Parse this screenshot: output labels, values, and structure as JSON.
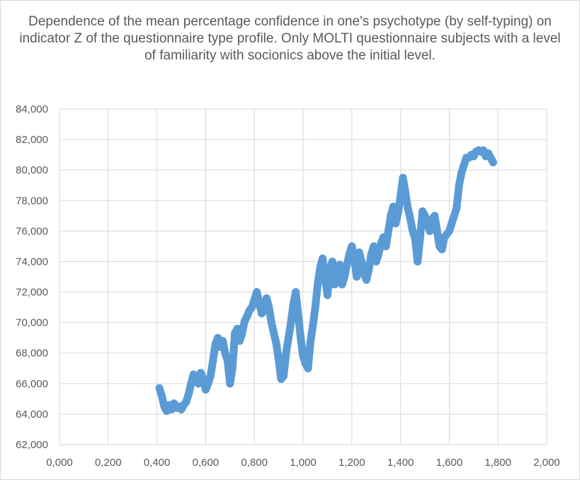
{
  "chart_data": {
    "type": "scatter",
    "title": "Dependence of the mean percentage confidence in one's psychotype (by self-typing) on indicator Z of the questionnaire type profile. Only MOLTI questionnaire subjects with a level of familiarity with socionics above the initial level.",
    "xlabel": "",
    "ylabel": "",
    "xlim": [
      0,
      2
    ],
    "ylim": [
      62000,
      84000
    ],
    "x_ticks": [
      "0,000",
      "0,200",
      "0,400",
      "0,600",
      "0,800",
      "1,000",
      "1,200",
      "1,400",
      "1,600",
      "1,800",
      "2,000"
    ],
    "y_ticks": [
      "62,000",
      "64,000",
      "66,000",
      "68,000",
      "70,000",
      "72,000",
      "74,000",
      "76,000",
      "78,000",
      "80,000",
      "82,000",
      "84,000"
    ],
    "grid": true,
    "legend": "none",
    "marker_color": "#5b9bd5",
    "series": [
      {
        "points": [
          [
            0.41,
            65.7
          ],
          [
            0.42,
            65.2
          ],
          [
            0.43,
            64.5
          ],
          [
            0.44,
            64.2
          ],
          [
            0.45,
            64.6
          ],
          [
            0.46,
            64.3
          ],
          [
            0.47,
            64.7
          ],
          [
            0.48,
            64.4
          ],
          [
            0.49,
            64.5
          ],
          [
            0.5,
            64.3
          ],
          [
            0.51,
            64.6
          ],
          [
            0.52,
            64.8
          ],
          [
            0.53,
            65.3
          ],
          [
            0.54,
            66.0
          ],
          [
            0.55,
            66.6
          ],
          [
            0.56,
            66.4
          ],
          [
            0.57,
            66.0
          ],
          [
            0.58,
            66.7
          ],
          [
            0.59,
            66.3
          ],
          [
            0.6,
            65.6
          ],
          [
            0.61,
            66.0
          ],
          [
            0.62,
            66.5
          ],
          [
            0.63,
            67.5
          ],
          [
            0.64,
            68.6
          ],
          [
            0.65,
            69.0
          ],
          [
            0.66,
            68.4
          ],
          [
            0.67,
            68.8
          ],
          [
            0.68,
            68.0
          ],
          [
            0.69,
            67.5
          ],
          [
            0.7,
            66.0
          ],
          [
            0.71,
            67.0
          ],
          [
            0.72,
            69.3
          ],
          [
            0.73,
            69.6
          ],
          [
            0.74,
            68.8
          ],
          [
            0.75,
            69.3
          ],
          [
            0.76,
            70.1
          ],
          [
            0.77,
            70.4
          ],
          [
            0.78,
            70.8
          ],
          [
            0.79,
            71.0
          ],
          [
            0.8,
            71.5
          ],
          [
            0.81,
            72.0
          ],
          [
            0.82,
            71.3
          ],
          [
            0.83,
            70.6
          ],
          [
            0.84,
            70.8
          ],
          [
            0.85,
            71.6
          ],
          [
            0.86,
            71.0
          ],
          [
            0.87,
            70.0
          ],
          [
            0.88,
            69.3
          ],
          [
            0.89,
            68.6
          ],
          [
            0.9,
            67.5
          ],
          [
            0.91,
            66.3
          ],
          [
            0.92,
            66.5
          ],
          [
            0.93,
            68.0
          ],
          [
            0.94,
            69.0
          ],
          [
            0.95,
            70.0
          ],
          [
            0.96,
            71.2
          ],
          [
            0.97,
            72.0
          ],
          [
            0.98,
            70.5
          ],
          [
            0.99,
            69.0
          ],
          [
            1.0,
            67.8
          ],
          [
            1.01,
            67.3
          ],
          [
            1.02,
            67.0
          ],
          [
            1.03,
            68.7
          ],
          [
            1.04,
            69.8
          ],
          [
            1.05,
            71.0
          ],
          [
            1.06,
            72.5
          ],
          [
            1.07,
            73.6
          ],
          [
            1.08,
            74.2
          ],
          [
            1.09,
            73.0
          ],
          [
            1.1,
            71.8
          ],
          [
            1.11,
            73.5
          ],
          [
            1.12,
            74.0
          ],
          [
            1.13,
            72.5
          ],
          [
            1.14,
            72.8
          ],
          [
            1.15,
            73.8
          ],
          [
            1.16,
            72.5
          ],
          [
            1.17,
            73.0
          ],
          [
            1.18,
            73.8
          ],
          [
            1.19,
            74.5
          ],
          [
            1.2,
            75.0
          ],
          [
            1.21,
            74.2
          ],
          [
            1.22,
            73.0
          ],
          [
            1.23,
            74.6
          ],
          [
            1.24,
            74.0
          ],
          [
            1.25,
            73.2
          ],
          [
            1.26,
            72.8
          ],
          [
            1.27,
            73.5
          ],
          [
            1.28,
            74.5
          ],
          [
            1.29,
            75.0
          ],
          [
            1.3,
            74.0
          ],
          [
            1.31,
            74.5
          ],
          [
            1.32,
            75.2
          ],
          [
            1.33,
            75.6
          ],
          [
            1.34,
            75.0
          ],
          [
            1.35,
            76.0
          ],
          [
            1.36,
            77.0
          ],
          [
            1.37,
            77.6
          ],
          [
            1.38,
            76.5
          ],
          [
            1.39,
            77.2
          ],
          [
            1.4,
            78.3
          ],
          [
            1.41,
            79.5
          ],
          [
            1.42,
            78.5
          ],
          [
            1.43,
            77.5
          ],
          [
            1.44,
            76.8
          ],
          [
            1.45,
            76.0
          ],
          [
            1.46,
            75.5
          ],
          [
            1.47,
            74.0
          ],
          [
            1.48,
            75.5
          ],
          [
            1.49,
            77.3
          ],
          [
            1.5,
            77.0
          ],
          [
            1.51,
            76.5
          ],
          [
            1.52,
            76.0
          ],
          [
            1.53,
            76.8
          ],
          [
            1.54,
            77.0
          ],
          [
            1.55,
            76.0
          ],
          [
            1.56,
            75.0
          ],
          [
            1.57,
            74.8
          ],
          [
            1.58,
            75.6
          ],
          [
            1.59,
            75.8
          ],
          [
            1.6,
            76.0
          ],
          [
            1.61,
            76.5
          ],
          [
            1.62,
            77.0
          ],
          [
            1.63,
            77.5
          ],
          [
            1.64,
            79.0
          ],
          [
            1.65,
            79.8
          ],
          [
            1.66,
            80.3
          ],
          [
            1.67,
            80.8
          ],
          [
            1.68,
            80.8
          ],
          [
            1.69,
            81.0
          ],
          [
            1.7,
            80.9
          ],
          [
            1.71,
            81.2
          ],
          [
            1.72,
            81.3
          ],
          [
            1.73,
            81.2
          ],
          [
            1.74,
            81.3
          ],
          [
            1.75,
            80.9
          ],
          [
            1.76,
            81.1
          ],
          [
            1.77,
            80.8
          ],
          [
            1.78,
            80.5
          ]
        ]
      }
    ]
  }
}
